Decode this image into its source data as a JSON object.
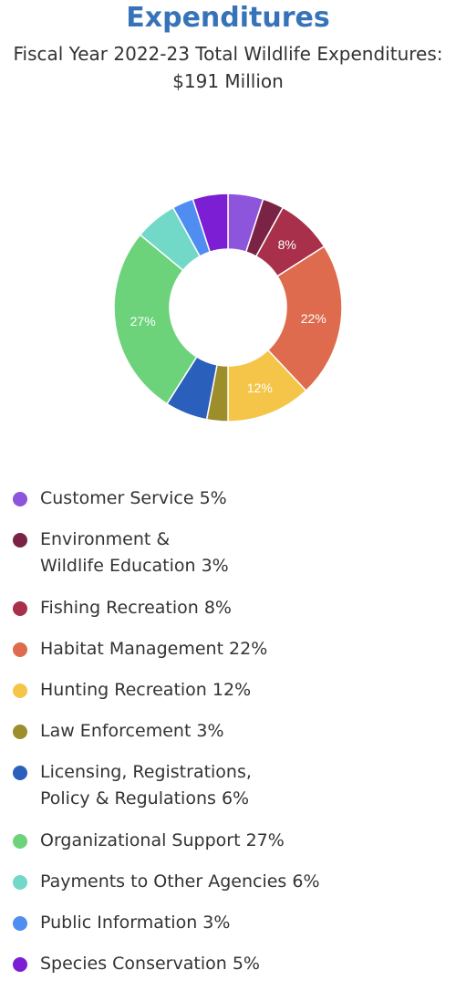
{
  "chart_data": {
    "type": "pie",
    "donut": true,
    "title": "Expenditures",
    "subtitle": "Fiscal Year 2022-23 Total Wildlife Expenditures: $191 Million",
    "legend_position": "bottom",
    "slices": [
      {
        "label": "Customer Service",
        "lines": [
          "Customer Service 5%"
        ],
        "value": 5,
        "color": "#8d54dc",
        "data_label": ""
      },
      {
        "label": "Environment & Wildlife Education",
        "lines": [
          "Environment &",
          "Wildlife Education 3%"
        ],
        "value": 3,
        "color": "#7a2344",
        "data_label": ""
      },
      {
        "label": "Fishing Recreation",
        "lines": [
          "Fishing Recreation 8%"
        ],
        "value": 8,
        "color": "#a8304a",
        "data_label": "8%"
      },
      {
        "label": "Habitat Management",
        "lines": [
          "Habitat Management 22%"
        ],
        "value": 22,
        "color": "#de6b4e",
        "data_label": "22%"
      },
      {
        "label": "Hunting Recreation",
        "lines": [
          "Hunting Recreation 12%"
        ],
        "value": 12,
        "color": "#f4c548",
        "data_label": "12%"
      },
      {
        "label": "Law Enforcement",
        "lines": [
          "Law Enforcement 3%"
        ],
        "value": 3,
        "color": "#9d8d2b",
        "data_label": ""
      },
      {
        "label": "Licensing, Registrations, Policy & Regulations",
        "lines": [
          "Licensing, Registrations,",
          "Policy & Regulations 6%"
        ],
        "value": 6,
        "color": "#2a5fbb",
        "data_label": ""
      },
      {
        "label": "Organizational Support",
        "lines": [
          "Organizational Support 27%"
        ],
        "value": 27,
        "color": "#6cd37a",
        "data_label": "27%"
      },
      {
        "label": "Payments to Other Agencies",
        "lines": [
          "Payments to Other Agencies 6%"
        ],
        "value": 6,
        "color": "#72d9c9",
        "data_label": ""
      },
      {
        "label": "Public Information",
        "lines": [
          "Public Information 3%"
        ],
        "value": 3,
        "color": "#4f8ef0",
        "data_label": ""
      },
      {
        "label": "Species Conservation",
        "lines": [
          "Species Conservation 5%"
        ],
        "value": 5,
        "color": "#7c1fd4",
        "data_label": ""
      }
    ]
  }
}
